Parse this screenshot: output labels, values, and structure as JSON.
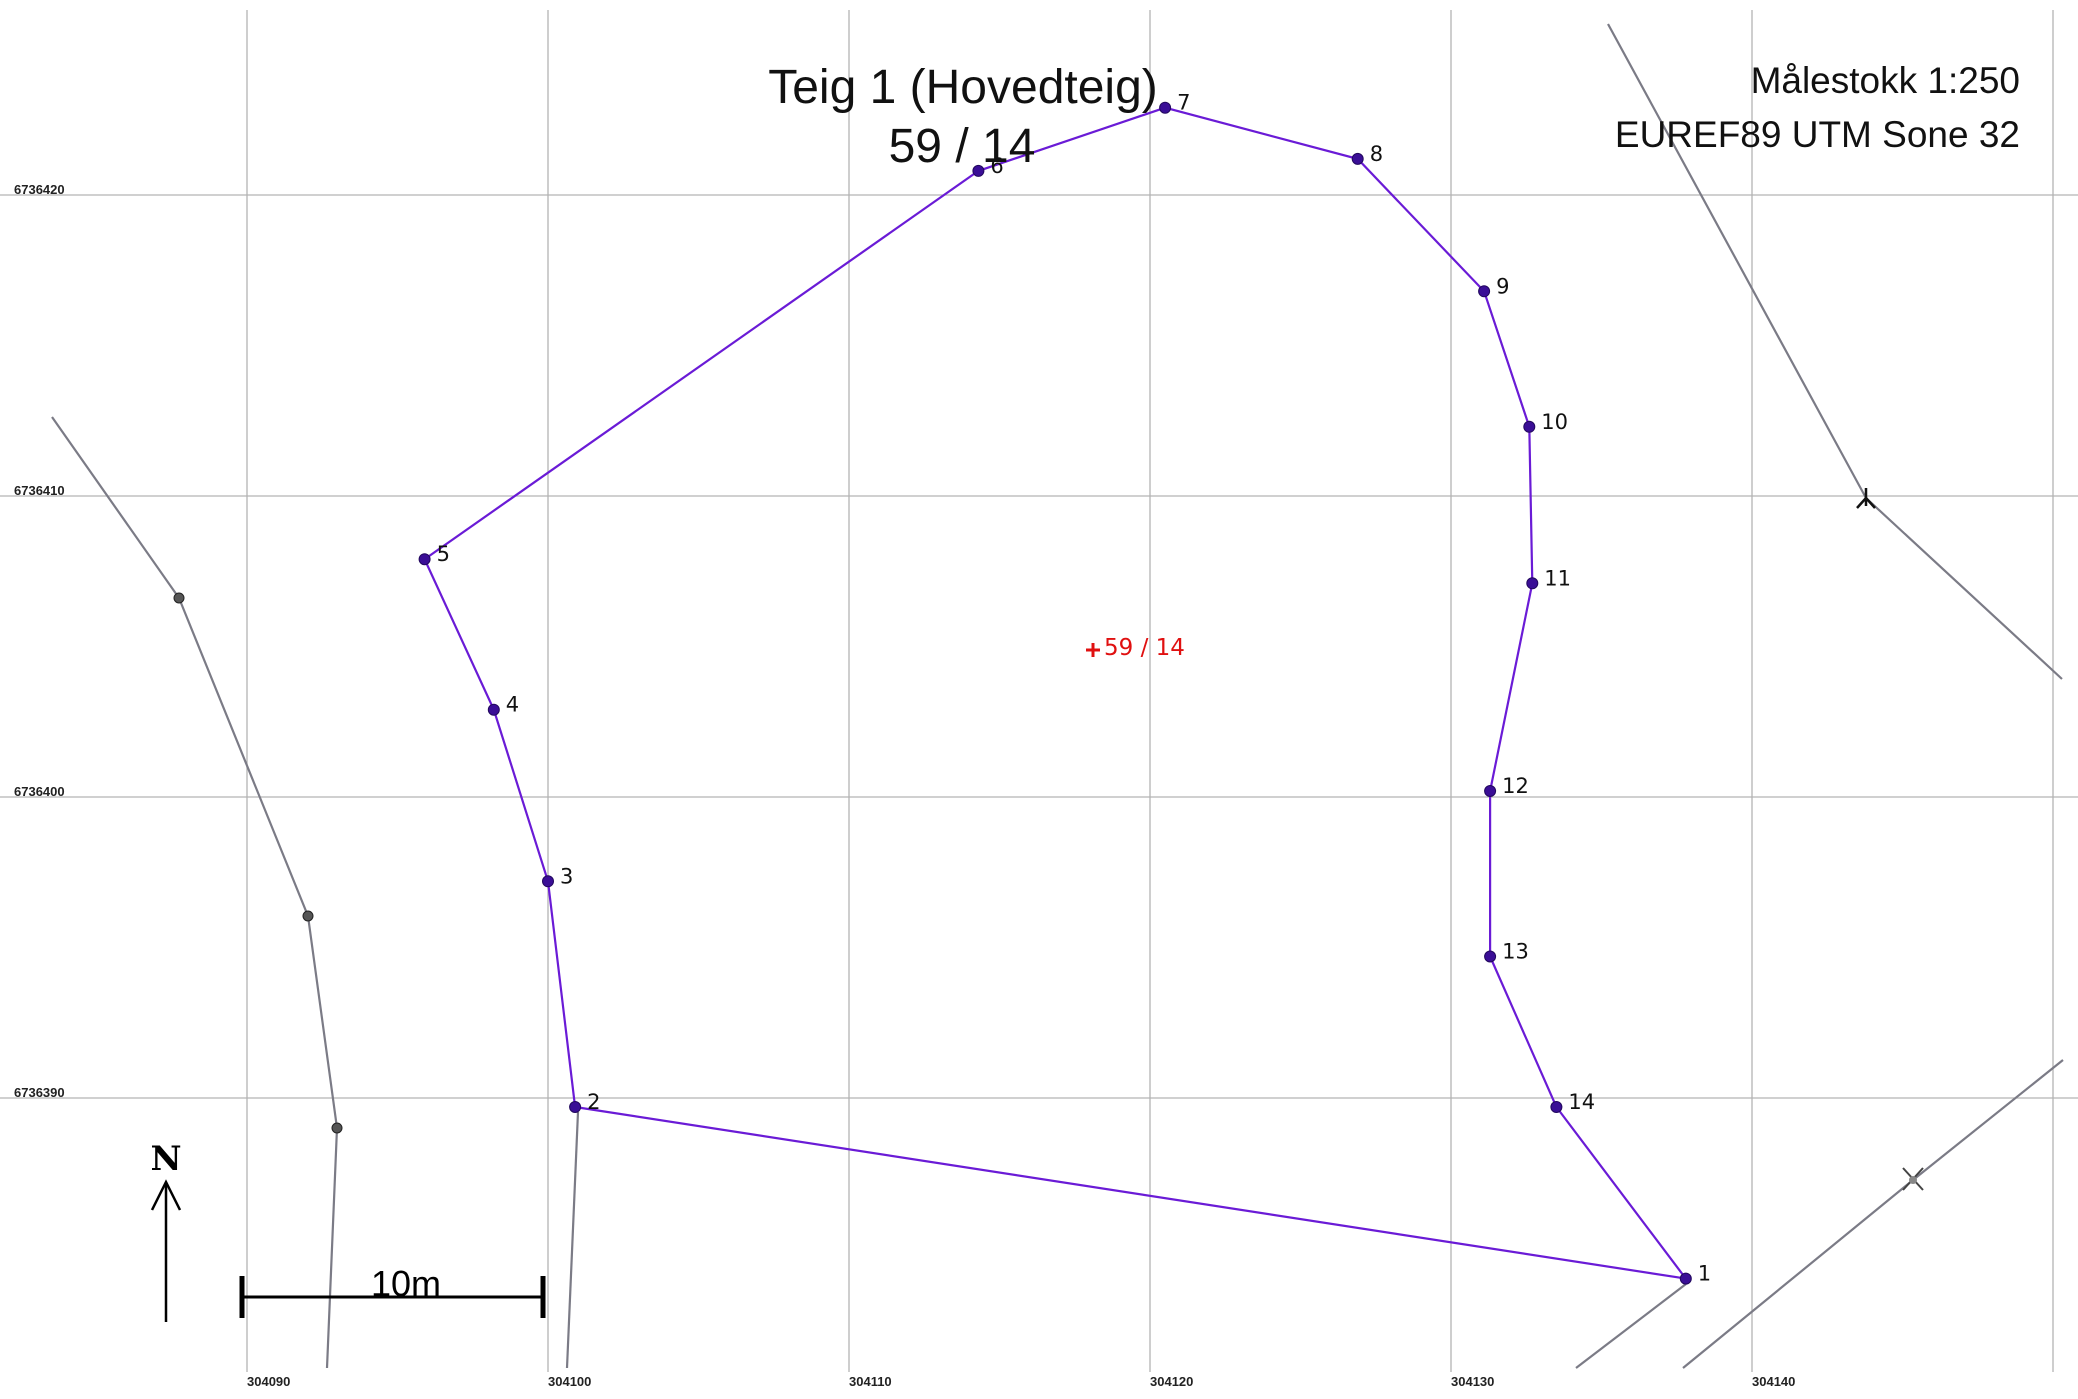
{
  "map": {
    "title_line1": "Teig 1 (Hovedteig)",
    "title_line2": "59 / 14",
    "scale_text": "Målestokk 1:250",
    "crs_text": "EUREF89 UTM Sone 32",
    "parcel_label": "59 / 14",
    "north_label": "N",
    "scale_bar_label": "10m",
    "x_ticks": [
      "304090",
      "304100",
      "304110",
      "304120",
      "304130",
      "304140"
    ],
    "y_ticks": [
      "6736420",
      "6736410",
      "6736400",
      "6736390"
    ],
    "boundary_color": "#6a1bd6",
    "parcel_label_color": "#e01010",
    "boundary_points": [
      {
        "label": "1",
        "e": 304137.8,
        "n": 6736384.0
      },
      {
        "label": "2",
        "e": 304100.9,
        "n": 6736389.7
      },
      {
        "label": "3",
        "e": 304100.0,
        "n": 6736397.2
      },
      {
        "label": "4",
        "e": 304098.2,
        "n": 6736402.9
      },
      {
        "label": "5",
        "e": 304095.9,
        "n": 6736407.9
      },
      {
        "label": "6",
        "e": 304114.3,
        "n": 6736420.8
      },
      {
        "label": "7",
        "e": 304120.5,
        "n": 6736422.9
      },
      {
        "label": "8",
        "e": 304126.9,
        "n": 6736421.2
      },
      {
        "label": "9",
        "e": 304131.1,
        "n": 6736416.8
      },
      {
        "label": "10",
        "e": 304132.6,
        "n": 6736412.3
      },
      {
        "label": "11",
        "e": 304132.7,
        "n": 6736407.1
      },
      {
        "label": "12",
        "e": 304131.3,
        "n": 6736400.2
      },
      {
        "label": "13",
        "e": 304131.3,
        "n": 6736394.7
      },
      {
        "label": "14",
        "e": 304133.5,
        "n": 6736389.7
      }
    ]
  }
}
